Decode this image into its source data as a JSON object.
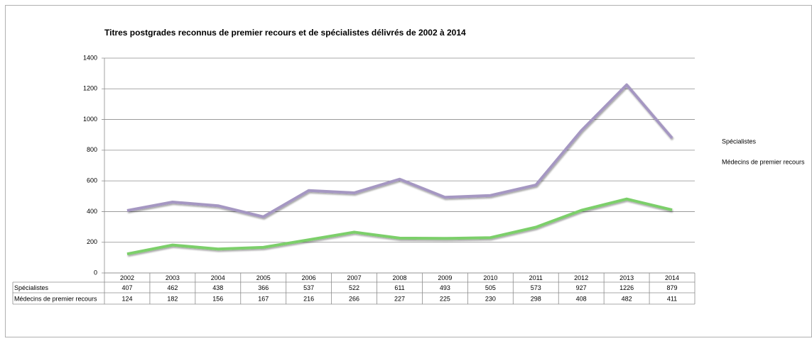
{
  "chart_data": {
    "type": "line",
    "title": "Titres postgrades reconnus de premier recours et de spécialistes délivrés de 2002 à 2014",
    "categories": [
      "2002",
      "2003",
      "2004",
      "2005",
      "2006",
      "2007",
      "2008",
      "2009",
      "2010",
      "2011",
      "2012",
      "2013",
      "2014"
    ],
    "series": [
      {
        "name": "Spécialistes",
        "color": "#a597c2",
        "values": [
          407,
          462,
          438,
          366,
          537,
          522,
          611,
          493,
          505,
          573,
          927,
          1226,
          879
        ]
      },
      {
        "name": "Médecins de premier recours",
        "color": "#7ccf6b",
        "values": [
          124,
          182,
          156,
          167,
          216,
          266,
          227,
          225,
          230,
          298,
          408,
          482,
          411
        ]
      }
    ],
    "ylim": [
      0,
      1400
    ],
    "yticks": [
      0,
      200,
      400,
      600,
      800,
      1000,
      1200,
      1400
    ],
    "grid": true,
    "legend": "right"
  }
}
